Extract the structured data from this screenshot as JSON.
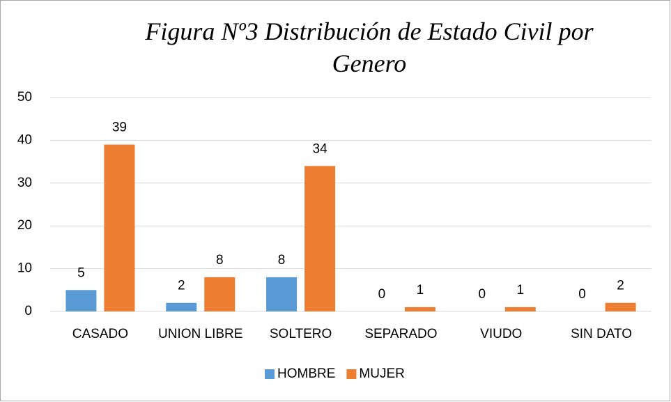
{
  "chart_data": {
    "type": "bar",
    "title": "Figura Nº3 Distribución de Estado Civil por Genero",
    "categories": [
      "CASADO",
      "UNION LIBRE",
      "SOLTERO",
      "SEPARADO",
      "VIUDO",
      "SIN DATO"
    ],
    "series": [
      {
        "name": "HOMBRE",
        "color": "#5b9bd5",
        "values": [
          5,
          2,
          8,
          0,
          0,
          0
        ]
      },
      {
        "name": "MUJER",
        "color": "#ed7d31",
        "values": [
          39,
          8,
          34,
          1,
          1,
          2
        ]
      }
    ],
    "ylim": [
      0,
      50
    ],
    "yticks": [
      0,
      10,
      20,
      30,
      40,
      50
    ],
    "grid": true,
    "legend": "bottom"
  }
}
